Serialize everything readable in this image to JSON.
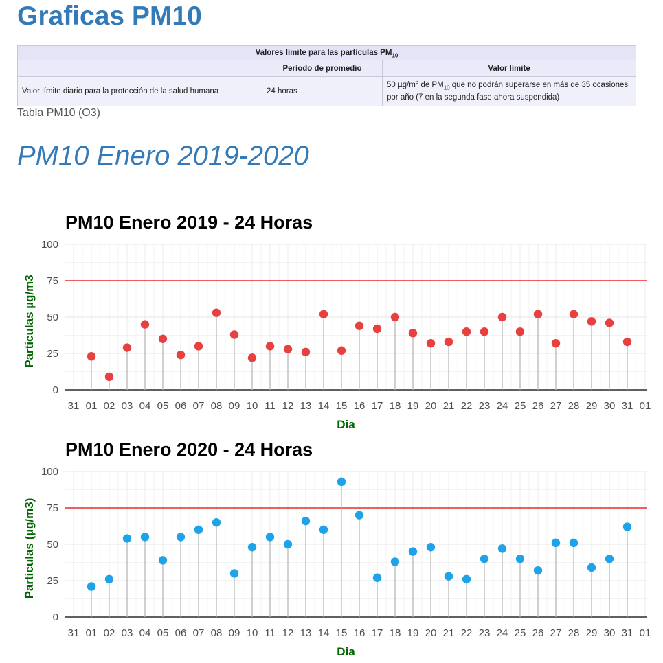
{
  "page": {
    "title": "Graficas PM10",
    "table_caption": "Tabla PM10 (O3)",
    "section_title": "PM10 Enero 2019-2020"
  },
  "limits_table": {
    "title_main": "Valores límite para las partículas PM",
    "title_sub": "10",
    "headers": [
      "",
      "Período de promedio",
      "Valor límite"
    ],
    "row": {
      "label": "Valor límite diario para la protección de la salud humana",
      "period": "24 horas",
      "limit_a": "50 µg/m",
      "limit_sup": "3",
      "limit_b": " de PM",
      "limit_sub": "10",
      "limit_c": " que no podrán superarse en más de 35 ocasiones por año (7 en la segunda fase ahora suspendida)"
    }
  },
  "chart_data": [
    {
      "type": "scatter",
      "style": "lollipop",
      "title": "PM10 Enero 2019 - 24 Horas",
      "xlabel": "Dia",
      "ylabel": "Particulas µg/m3",
      "x_tick_labels": [
        "31",
        "01",
        "02",
        "03",
        "04",
        "05",
        "06",
        "07",
        "08",
        "09",
        "10",
        "11",
        "12",
        "13",
        "14",
        "15",
        "16",
        "17",
        "18",
        "19",
        "20",
        "21",
        "22",
        "23",
        "24",
        "25",
        "26",
        "27",
        "28",
        "29",
        "30",
        "31",
        "01"
      ],
      "x": [
        "01",
        "02",
        "03",
        "04",
        "05",
        "06",
        "07",
        "08",
        "09",
        "10",
        "11",
        "12",
        "13",
        "14",
        "15",
        "16",
        "17",
        "18",
        "19",
        "20",
        "21",
        "22",
        "23",
        "24",
        "25",
        "26",
        "27",
        "28",
        "29",
        "30",
        "31"
      ],
      "values": [
        23,
        9,
        29,
        45,
        35,
        24,
        30,
        53,
        38,
        22,
        30,
        28,
        26,
        52,
        27,
        44,
        42,
        50,
        39,
        32,
        33,
        40,
        40,
        50,
        40,
        52,
        32,
        52,
        47,
        46,
        33
      ],
      "limit_line": 75,
      "ylim": [
        0,
        100
      ],
      "yticks": [
        0,
        25,
        50,
        75,
        100
      ],
      "grid": true,
      "point_color": "#e8403f",
      "limit_color": "#e00000"
    },
    {
      "type": "scatter",
      "style": "lollipop",
      "title": "PM10 Enero 2020 - 24 Horas",
      "xlabel": "Dia",
      "ylabel": "Particulas (µg/m3)",
      "x_tick_labels": [
        "31",
        "01",
        "02",
        "03",
        "04",
        "05",
        "06",
        "07",
        "08",
        "09",
        "10",
        "11",
        "12",
        "13",
        "14",
        "15",
        "16",
        "17",
        "18",
        "19",
        "20",
        "21",
        "22",
        "23",
        "24",
        "25",
        "26",
        "27",
        "28",
        "29",
        "30",
        "31",
        "01"
      ],
      "x": [
        "01",
        "02",
        "03",
        "04",
        "05",
        "06",
        "07",
        "08",
        "09",
        "10",
        "11",
        "12",
        "13",
        "14",
        "15",
        "16",
        "17",
        "18",
        "19",
        "20",
        "21",
        "22",
        "23",
        "24",
        "25",
        "26",
        "27",
        "28",
        "29",
        "30",
        "31"
      ],
      "values": [
        21,
        26,
        54,
        55,
        39,
        55,
        60,
        65,
        30,
        48,
        55,
        50,
        66,
        60,
        93,
        70,
        27,
        38,
        45,
        48,
        28,
        26,
        40,
        47,
        40,
        32,
        51,
        51,
        34,
        40,
        62
      ],
      "limit_line": 75,
      "ylim": [
        0,
        100
      ],
      "yticks": [
        0,
        25,
        50,
        75,
        100
      ],
      "grid": true,
      "point_color": "#1ea3e8",
      "limit_color": "#e00000"
    }
  ]
}
